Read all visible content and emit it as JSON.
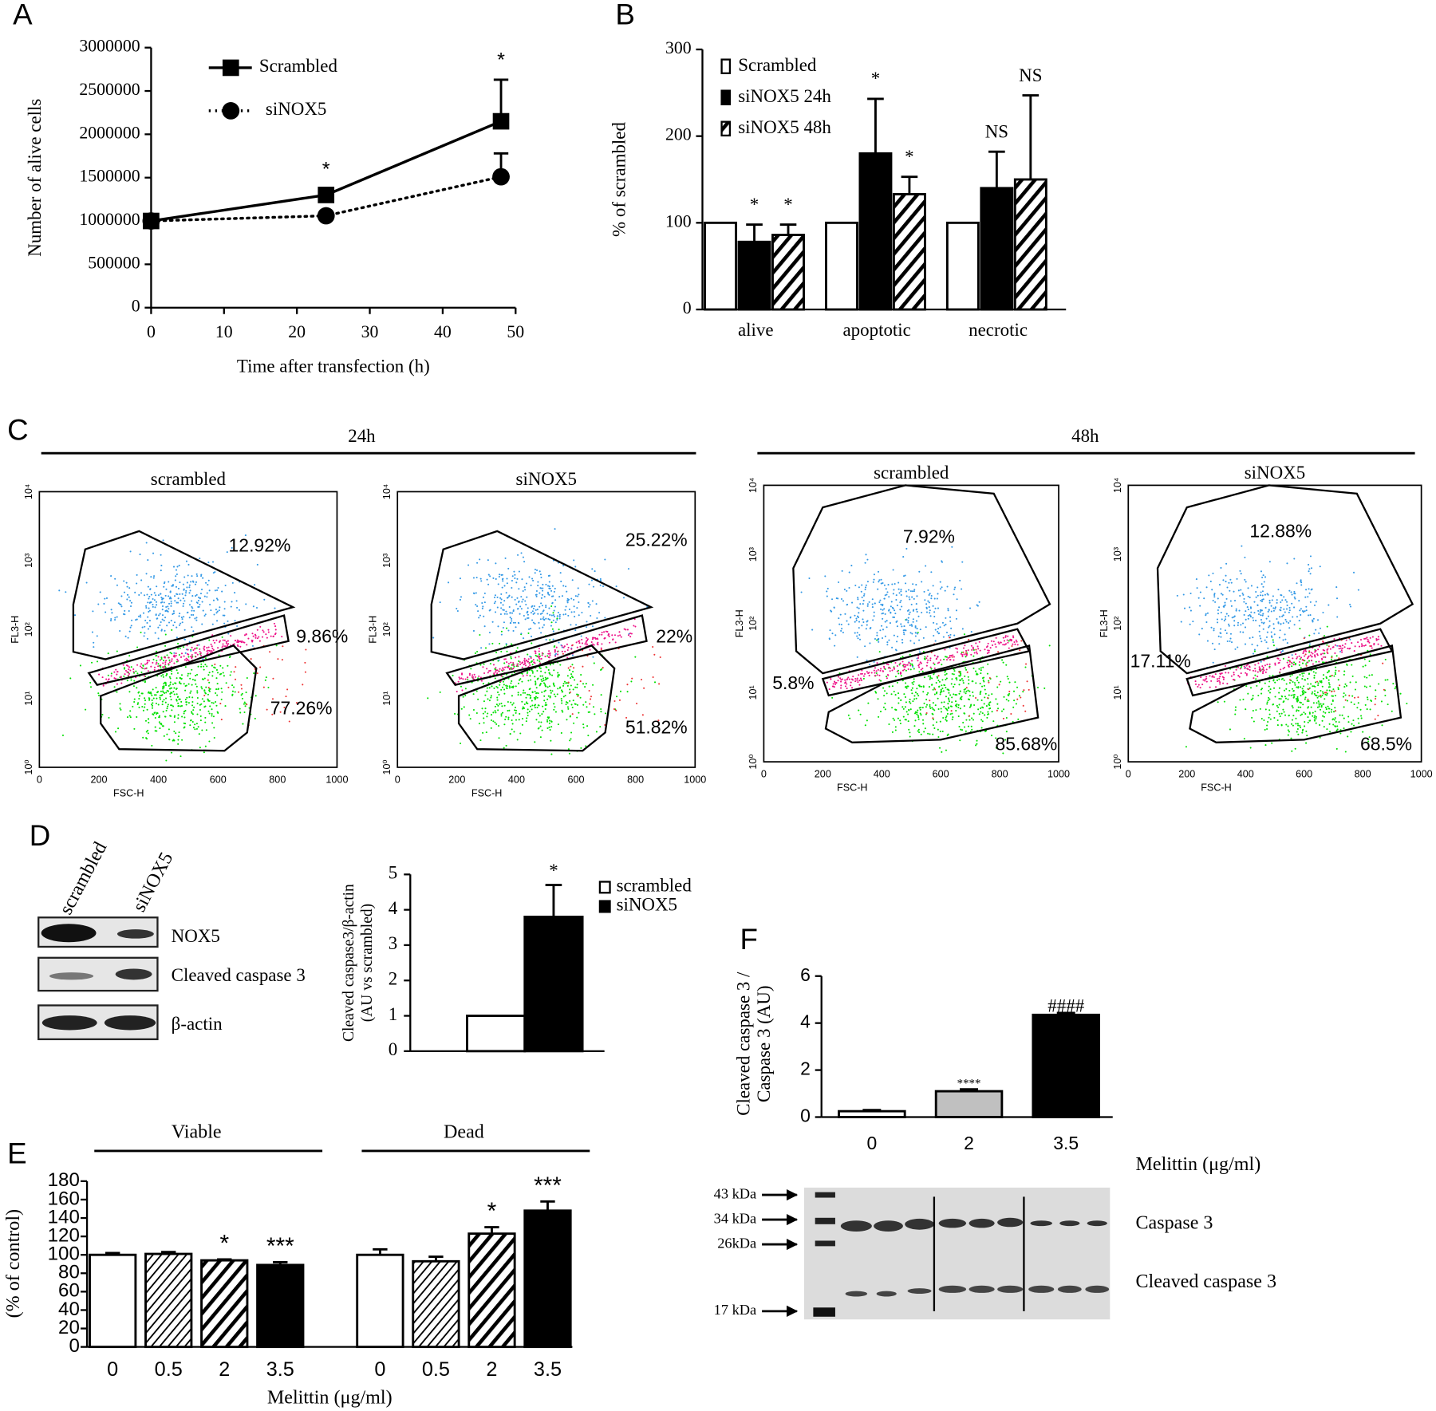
{
  "panel_labels": [
    "A",
    "B",
    "C",
    "D",
    "E",
    "F"
  ],
  "chart_data": [
    {
      "type": "line",
      "xlabel": "Time after transfection (h)",
      "ylabel": "Number of alive cells",
      "x": [
        0,
        24,
        48
      ],
      "xlim": [
        0,
        50
      ],
      "xticks": [
        0,
        10,
        20,
        30,
        40,
        50
      ],
      "ylim": [
        0,
        3000000
      ],
      "yticks": [
        0,
        500000,
        1000000,
        1500000,
        2000000,
        2500000,
        3000000
      ],
      "legend": "upper left",
      "series": [
        {
          "name": "Scrambled",
          "color": "#000000",
          "marker": "square",
          "dash": "solid",
          "values": [
            1000000,
            1300000,
            2150000
          ],
          "errors": [
            null,
            70000,
            480000
          ],
          "annotations": [
            null,
            "*",
            "*"
          ]
        },
        {
          "name": "siNOX5",
          "color": "#000000",
          "marker": "circle",
          "dash": "dotted",
          "values": [
            1000000,
            1060000,
            1510000
          ],
          "errors": [
            null,
            null,
            270000
          ]
        }
      ]
    },
    {
      "type": "bar",
      "ylabel": "% of scrambled",
      "categories": [
        "alive",
        "apoptotic",
        "necrotic"
      ],
      "ylim": [
        0,
        300
      ],
      "yticks": [
        0,
        100,
        200,
        300
      ],
      "legend": "upper left",
      "series": [
        {
          "name": "Scrambled",
          "fill": "#ffffff",
          "values": [
            100,
            100,
            100
          ]
        },
        {
          "name": "siNOX5 24h",
          "fill": "#000000",
          "values": [
            78,
            180,
            140
          ],
          "errors": [
            20,
            63,
            42
          ],
          "annotations": [
            "*",
            "*",
            "NS"
          ]
        },
        {
          "name": "siNOX5 48h",
          "fill": "hatch",
          "values": [
            86,
            133,
            150
          ],
          "errors": [
            12,
            20,
            97
          ],
          "annotations": [
            "*",
            "*",
            "NS"
          ]
        }
      ]
    },
    {
      "type": "bar",
      "ylabel": [
        "Cleaved caspase3/β-actin",
        "(AU vs scrambled)"
      ],
      "ylim": [
        0,
        5
      ],
      "yticks": [
        0,
        1,
        2,
        3,
        4,
        5
      ],
      "legend": "upper right",
      "series": [
        {
          "name": "scrambled",
          "fill": "#ffffff",
          "values": [
            1
          ]
        },
        {
          "name": "siNOX5",
          "fill": "#000000",
          "values": [
            3.8
          ],
          "errors": [
            0.9
          ],
          "annotations": [
            "*"
          ]
        }
      ]
    },
    {
      "type": "bar",
      "ylabel": "(% of control)",
      "xlabel": "Melittin (μg/ml)",
      "categories": [
        "0",
        "0.5",
        "2",
        "3.5"
      ],
      "fills": [
        "#ffffff",
        "hatch-fine",
        "hatch",
        "#000000"
      ],
      "ylim": [
        0,
        180
      ],
      "yticks": [
        0,
        20,
        40,
        60,
        80,
        100,
        120,
        140,
        160,
        180
      ],
      "groups": [
        {
          "name": "Viable",
          "values": [
            100,
            101,
            94,
            89
          ],
          "errors": [
            2,
            2,
            1,
            3
          ],
          "annotations": [
            null,
            null,
            "*",
            "***"
          ]
        },
        {
          "name": "Dead",
          "values": [
            100,
            93,
            123,
            148
          ],
          "errors": [
            6,
            5,
            7,
            10
          ],
          "annotations": [
            null,
            null,
            "*",
            "***"
          ]
        }
      ]
    },
    {
      "type": "bar",
      "ylabel": [
        "Cleaved caspase 3 /",
        "Caspase 3 (AU)"
      ],
      "xlabel": "Melittin (μg/ml)",
      "categories": [
        "0",
        "2",
        "3.5"
      ],
      "fills": [
        "#ffffff",
        "#c0c0c0",
        "#000000"
      ],
      "values": [
        0.25,
        1.1,
        4.35
      ],
      "errors": [
        0.05,
        0.08,
        0.08
      ],
      "annotations": [
        null,
        "****",
        "####"
      ],
      "ylim": [
        0,
        6
      ],
      "yticks": [
        0,
        2,
        4,
        6
      ]
    }
  ],
  "flow": {
    "xlabel": "FSC-H",
    "ylabel": "FL3-H",
    "xticks": [
      "0",
      "200",
      "400",
      "600",
      "800",
      "1000"
    ],
    "yticks": [
      "10⁰",
      "10¹",
      "10²",
      "10³",
      "10⁴"
    ],
    "timepoints": [
      {
        "label": "24h",
        "plots": [
          {
            "title": "scrambled",
            "percents": [
              "12.92%",
              "9.86%",
              "77.26%"
            ]
          },
          {
            "title": "siNOX5",
            "percents": [
              "25.22%",
              "22%",
              "51.82%"
            ]
          }
        ]
      },
      {
        "label": "48h",
        "plots": [
          {
            "title": "scrambled",
            "percents": [
              "7.92%",
              "5.8%",
              "85.68%"
            ]
          },
          {
            "title": "siNOX5",
            "percents": [
              "12.88%",
              "17.11%",
              "68.5%"
            ]
          }
        ]
      }
    ]
  },
  "blot_d": {
    "lanes": [
      "scrambled",
      "siNOX5"
    ],
    "bands": [
      "NOX5",
      "Cleaved caspase 3",
      "β-actin"
    ]
  },
  "blot_f": {
    "markers": [
      "43 kDa",
      "34 kDa",
      "26kDa",
      "17 kDa"
    ],
    "bands": [
      "Caspase 3",
      "Cleaved caspase 3"
    ]
  }
}
